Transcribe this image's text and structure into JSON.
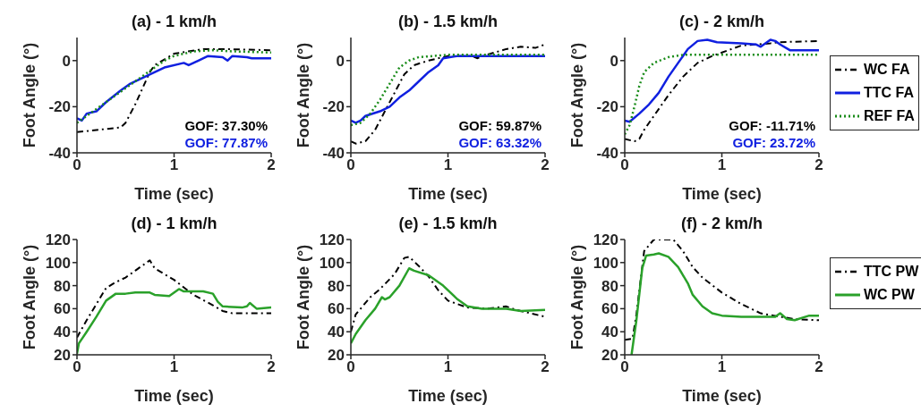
{
  "chart_data": [
    {
      "type": "line",
      "title": "(a) - 1 km/h",
      "xlabel": "Time (sec)",
      "ylabel": "Foot Angle (°)",
      "xlim": [
        0,
        2
      ],
      "xticks": [
        0,
        1,
        2
      ],
      "ylim": [
        -40,
        10
      ],
      "yticks": [
        -40,
        -20,
        0
      ],
      "grid": false,
      "legend": false,
      "annotations": [
        "GOF: 37.30%",
        "GOF: 77.87%"
      ],
      "series": [
        {
          "color": "#000000",
          "line_style": "dashed",
          "x": [
            0,
            0.45,
            0.5,
            0.6,
            0.75,
            0.8,
            1.0,
            1.3,
            1.5,
            2
          ],
          "values": [
            -31,
            -29,
            -27,
            -19,
            -5,
            -2,
            3,
            5,
            5,
            4.5
          ]
        },
        {
          "color": "#1020e0",
          "line_style": "solid",
          "x": [
            0,
            0.05,
            0.1,
            0.2,
            0.3,
            0.45,
            0.55,
            0.7,
            0.9,
            1.1,
            1.15,
            1.25,
            1.35,
            1.5,
            1.55,
            1.6,
            1.75,
            1.8,
            2
          ],
          "values": [
            -25,
            -26,
            -23,
            -22,
            -18,
            -13,
            -10,
            -7,
            -3,
            -1,
            -2,
            0,
            2,
            1.5,
            0,
            2,
            1.5,
            1,
            1
          ]
        },
        {
          "color": "#1a8c1a",
          "line_style": "dotted",
          "x": [
            0,
            0.1,
            0.3,
            0.5,
            0.7,
            0.9,
            1.0,
            1.2,
            1.4,
            1.6,
            2
          ],
          "values": [
            -27,
            -24,
            -18,
            -12,
            -6,
            0,
            2,
            4,
            4.5,
            4,
            3.5
          ]
        }
      ]
    },
    {
      "type": "line",
      "title": "(b) - 1.5 km/h",
      "xlabel": "Time (sec)",
      "ylabel": "Foot Angle (°)",
      "xlim": [
        0,
        2
      ],
      "xticks": [
        0,
        1,
        2
      ],
      "ylim": [
        -40,
        10
      ],
      "yticks": [
        -40,
        -20,
        0
      ],
      "grid": false,
      "legend": false,
      "annotations": [
        "GOF: 59.87%",
        "GOF: 63.32%"
      ],
      "series": [
        {
          "color": "#000000",
          "line_style": "dashed",
          "x": [
            0,
            0.05,
            0.15,
            0.25,
            0.35,
            0.45,
            0.55,
            0.65,
            0.8,
            1.0,
            1.25,
            1.3,
            1.4,
            1.6,
            1.75,
            1.9,
            2
          ],
          "values": [
            -35,
            -36,
            -35,
            -30,
            -22,
            -14,
            -6,
            -2,
            0,
            2,
            2,
            1,
            2.5,
            5,
            6,
            5.5,
            7
          ]
        },
        {
          "color": "#1020e0",
          "line_style": "solid",
          "x": [
            0,
            0.05,
            0.1,
            0.15,
            0.3,
            0.4,
            0.5,
            0.6,
            0.7,
            0.8,
            0.9,
            0.95,
            1.1,
            1.5,
            2
          ],
          "values": [
            -26,
            -27,
            -26,
            -24,
            -22,
            -20,
            -16,
            -13,
            -9,
            -5,
            -2,
            1,
            2,
            2,
            2
          ]
        },
        {
          "color": "#1a8c1a",
          "line_style": "dotted",
          "x": [
            0,
            0.1,
            0.2,
            0.3,
            0.4,
            0.5,
            0.6,
            0.7,
            1.0,
            2
          ],
          "values": [
            -28,
            -27,
            -23,
            -17,
            -10,
            -3,
            0,
            1.5,
            2.5,
            2.5
          ]
        }
      ]
    },
    {
      "type": "line",
      "title": "(c) - 2 km/h",
      "xlabel": "Time (sec)",
      "ylabel": "Foot Angle (°)",
      "xlim": [
        0,
        2
      ],
      "xticks": [
        0,
        1,
        2
      ],
      "ylim": [
        -40,
        10
      ],
      "yticks": [
        -40,
        -20,
        0
      ],
      "grid": false,
      "legend": "right",
      "annotations": [
        "GOF: -11.71%",
        "GOF: 23.72%"
      ],
      "series": [
        {
          "name": "WC FA",
          "color": "#000000",
          "line_style": "dashed",
          "x": [
            0,
            0.1,
            0.15,
            0.2,
            0.3,
            0.45,
            0.6,
            0.75,
            0.9,
            1.1,
            1.2,
            1.5,
            1.6,
            2
          ],
          "values": [
            -34,
            -35,
            -34,
            -30,
            -24,
            -15,
            -7,
            -1,
            2,
            5,
            6.5,
            7.5,
            8,
            8.5
          ]
        },
        {
          "name": "TTC FA",
          "color": "#1020e0",
          "line_style": "solid",
          "x": [
            0,
            0.05,
            0.15,
            0.25,
            0.35,
            0.45,
            0.55,
            0.65,
            0.75,
            0.85,
            0.95,
            1.2,
            1.35,
            1.4,
            1.5,
            1.55,
            1.6,
            1.7,
            2
          ],
          "values": [
            -26,
            -26.5,
            -23,
            -19,
            -14,
            -7,
            -1,
            5,
            8.5,
            9,
            8,
            7.5,
            7,
            6,
            9,
            8.5,
            7,
            4.5,
            4.5
          ]
        },
        {
          "name": "REF FA",
          "color": "#1a8c1a",
          "line_style": "dotted",
          "x": [
            0,
            0.05,
            0.1,
            0.15,
            0.2,
            0.3,
            0.45,
            0.6,
            2
          ],
          "values": [
            -32,
            -28,
            -20,
            -11,
            -5,
            -1,
            1.5,
            2.5,
            2.5
          ]
        }
      ]
    },
    {
      "type": "line",
      "title": "(d) - 1 km/h",
      "xlabel": "Time (sec)",
      "ylabel": "Foot Angle (°)",
      "xlim": [
        0,
        2
      ],
      "xticks": [
        0,
        1,
        2
      ],
      "ylim": [
        20,
        120
      ],
      "yticks": [
        20,
        40,
        60,
        80,
        100,
        120
      ],
      "grid": false,
      "legend": false,
      "series": [
        {
          "color": "#000000",
          "line_style": "dashed",
          "x": [
            0,
            0.1,
            0.3,
            0.4,
            0.5,
            0.6,
            0.75,
            0.8,
            1.0,
            1.2,
            1.4,
            1.5,
            1.6,
            2
          ],
          "values": [
            35,
            50,
            78,
            83,
            87,
            93,
            102,
            95,
            85,
            72,
            63,
            58,
            56,
            56
          ]
        },
        {
          "color": "#2aa12a",
          "line_style": "solid",
          "x": [
            0,
            0.02,
            0.1,
            0.2,
            0.3,
            0.4,
            0.5,
            0.6,
            0.75,
            0.8,
            0.95,
            1.05,
            1.1,
            1.3,
            1.4,
            1.45,
            1.5,
            1.7,
            1.75,
            1.78,
            1.85,
            2
          ],
          "values": [
            21,
            30,
            40,
            53,
            67,
            73,
            73,
            74,
            74,
            72,
            71,
            77,
            75,
            75,
            73,
            66,
            62,
            61,
            62,
            65,
            60,
            61
          ]
        }
      ]
    },
    {
      "type": "line",
      "title": "(e) - 1.5 km/h",
      "xlabel": "Time (sec)",
      "ylabel": "Foot Angle (°)",
      "xlim": [
        0,
        2
      ],
      "xticks": [
        0,
        1,
        2
      ],
      "ylim": [
        20,
        120
      ],
      "yticks": [
        20,
        40,
        60,
        80,
        100,
        120
      ],
      "grid": false,
      "legend": false,
      "series": [
        {
          "color": "#000000",
          "line_style": "dashed",
          "x": [
            0,
            0.05,
            0.2,
            0.3,
            0.45,
            0.55,
            0.6,
            0.7,
            0.8,
            0.9,
            1.0,
            1.2,
            1.4,
            1.6,
            1.7,
            2
          ],
          "values": [
            40,
            55,
            70,
            77,
            90,
            104,
            105,
            97,
            88,
            76,
            67,
            61,
            60,
            62,
            59,
            53
          ]
        },
        {
          "color": "#2aa12a",
          "line_style": "solid",
          "x": [
            0,
            0.05,
            0.15,
            0.25,
            0.32,
            0.35,
            0.4,
            0.5,
            0.6,
            0.65,
            0.8,
            0.95,
            1.1,
            1.2,
            1.35,
            1.6,
            1.75,
            2
          ],
          "values": [
            30,
            38,
            50,
            60,
            70,
            68,
            70,
            80,
            95,
            93,
            89,
            80,
            68,
            62,
            60,
            60,
            58,
            59
          ]
        }
      ]
    },
    {
      "type": "line",
      "title": "(f) - 2 km/h",
      "xlabel": "Time (sec)",
      "ylabel": "Foot Angle (°)",
      "xlim": [
        0,
        2
      ],
      "xticks": [
        0,
        1,
        2
      ],
      "ylim": [
        20,
        120
      ],
      "yticks": [
        20,
        40,
        60,
        80,
        100,
        120
      ],
      "grid": false,
      "legend": "right",
      "series": [
        {
          "name": "TTC PW",
          "color": "#000000",
          "line_style": "dashed",
          "x": [
            0,
            0.08,
            0.12,
            0.2,
            0.3,
            0.5,
            0.6,
            0.7,
            0.8,
            1.0,
            1.2,
            1.4,
            1.6,
            1.75,
            2
          ],
          "values": [
            33,
            34,
            55,
            110,
            120,
            120,
            110,
            96,
            87,
            74,
            64,
            56,
            53,
            51,
            50
          ]
        },
        {
          "name": "WC PW",
          "color": "#2aa12a",
          "line_style": "solid",
          "x": [
            0.07,
            0.12,
            0.18,
            0.22,
            0.3,
            0.35,
            0.45,
            0.55,
            0.65,
            0.7,
            0.8,
            0.9,
            1.0,
            1.2,
            1.55,
            1.6,
            1.67,
            1.75,
            1.9,
            2
          ],
          "values": [
            20,
            50,
            95,
            106,
            107,
            108,
            105,
            96,
            82,
            72,
            62,
            56,
            54,
            53,
            53,
            56,
            51,
            50,
            54,
            54
          ]
        }
      ]
    }
  ]
}
